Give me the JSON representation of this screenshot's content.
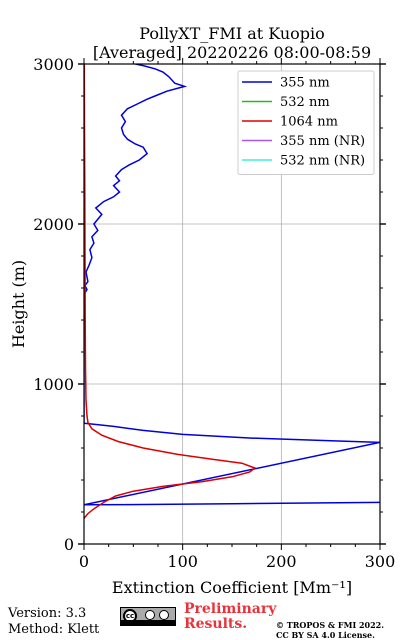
{
  "chart_data": {
    "type": "line",
    "title_line1": "PollyXT_FMI at Kuopio",
    "title_line2": "[Averaged] 20220226 08:00-08:59",
    "xlabel": "Extinction Coefficient [Mm⁻¹]",
    "ylabel": "Height (m)",
    "xlim": [
      0,
      300
    ],
    "ylim": [
      0,
      3000
    ],
    "x_ticks": [
      0,
      100,
      200,
      300
    ],
    "y_ticks": [
      0,
      1000,
      2000,
      3000
    ],
    "grid": true,
    "legend_position": "top-right",
    "series": [
      {
        "name": "355 nm",
        "color": "#0000dd",
        "points": [
          [
            300,
            260
          ],
          [
            150,
            252
          ],
          [
            60,
            247
          ],
          [
            0,
            245
          ],
          [
            300,
            635
          ],
          [
            250,
            645
          ],
          [
            170,
            662
          ],
          [
            100,
            685
          ],
          [
            60,
            710
          ],
          [
            30,
            735
          ],
          [
            10,
            748
          ],
          [
            0,
            755
          ],
          [
            0,
            1560
          ],
          [
            3,
            1590
          ],
          [
            1,
            1615
          ],
          [
            4,
            1640
          ],
          [
            2,
            1700
          ],
          [
            5,
            1740
          ],
          [
            8,
            1790
          ],
          [
            6,
            1840
          ],
          [
            10,
            1880
          ],
          [
            8,
            1920
          ],
          [
            14,
            1960
          ],
          [
            10,
            2000
          ],
          [
            18,
            2060
          ],
          [
            12,
            2100
          ],
          [
            20,
            2140
          ],
          [
            30,
            2170
          ],
          [
            36,
            2200
          ],
          [
            30,
            2240
          ],
          [
            36,
            2270
          ],
          [
            32,
            2300
          ],
          [
            38,
            2340
          ],
          [
            46,
            2370
          ],
          [
            56,
            2400
          ],
          [
            64,
            2440
          ],
          [
            60,
            2480
          ],
          [
            52,
            2500
          ],
          [
            44,
            2530
          ],
          [
            40,
            2560
          ],
          [
            38,
            2600
          ],
          [
            42,
            2640
          ],
          [
            38,
            2680
          ],
          [
            44,
            2720
          ],
          [
            54,
            2750
          ],
          [
            64,
            2780
          ],
          [
            72,
            2800
          ],
          [
            84,
            2830
          ],
          [
            102,
            2860
          ],
          [
            92,
            2880
          ],
          [
            86,
            2920
          ],
          [
            80,
            2950
          ],
          [
            72,
            2970
          ],
          [
            60,
            2990
          ],
          [
            52,
            3000
          ]
        ]
      },
      {
        "name": "532 nm",
        "color": "#22bb22",
        "points": []
      },
      {
        "name": "1064 nm",
        "color": "#dd0000",
        "points": [
          [
            0,
            160
          ],
          [
            4,
            190
          ],
          [
            10,
            220
          ],
          [
            20,
            260
          ],
          [
            32,
            300
          ],
          [
            50,
            330
          ],
          [
            80,
            360
          ],
          [
            120,
            390
          ],
          [
            150,
            420
          ],
          [
            168,
            450
          ],
          [
            173,
            475
          ],
          [
            160,
            505
          ],
          [
            130,
            530
          ],
          [
            95,
            560
          ],
          [
            60,
            600
          ],
          [
            35,
            640
          ],
          [
            18,
            680
          ],
          [
            8,
            720
          ],
          [
            4,
            760
          ],
          [
            3,
            800
          ],
          [
            2,
            900
          ],
          [
            1.5,
            1100
          ],
          [
            1.2,
            1400
          ],
          [
            1,
            1800
          ],
          [
            0.8,
            2200
          ],
          [
            0.5,
            2600
          ],
          [
            0.3,
            3000
          ]
        ]
      },
      {
        "name": "355 nm (NR)",
        "color": "#aa55ee",
        "points": []
      },
      {
        "name": "532 nm (NR)",
        "color": "#44eedd",
        "points": []
      }
    ]
  },
  "footer": {
    "version": "Version: 3.3",
    "method": "Method: Klett",
    "preliminary_line1": "Preliminary",
    "preliminary_line2": "Results.",
    "license_line1": "© TROPOS & FMI 2022.",
    "license_line2": "CC BY SA 4.0 License.",
    "badge_text": "cc"
  }
}
